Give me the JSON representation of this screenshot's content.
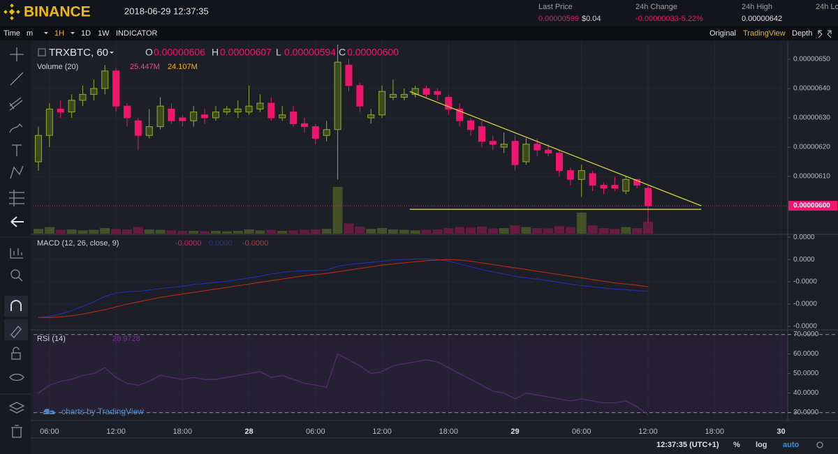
{
  "header": {
    "logo": "BINANCE",
    "datetime": "2018-06-29 12:37:35",
    "stats": [
      {
        "label": "Last Price",
        "values": [
          "0.00000599",
          "$0.04"
        ]
      },
      {
        "label": "24h Change",
        "values": [
          "-0.00000033",
          "-5.22%"
        ]
      },
      {
        "label": "24h High",
        "values": [
          "0.00000642"
        ]
      },
      {
        "label": "24h Lo"
      }
    ]
  },
  "toolbar": {
    "left": [
      "Time",
      "m",
      "1H",
      "1D",
      "1W",
      "INDICATOR"
    ],
    "right": [
      "Original",
      "TradingView",
      "Depth"
    ]
  },
  "chart_data": [
    {
      "type": "candlestick",
      "symbol": "TRXBTC, 60",
      "ohlc_legend": [
        {
          "key": "O",
          "value": "0.00000606"
        },
        {
          "key": "H",
          "value": "0.00000607"
        },
        {
          "key": "L",
          "value": "0.00000594"
        },
        {
          "key": "C",
          "value": "0.00000600"
        }
      ],
      "volume_legend": {
        "title": "Volume (20)",
        "values": [
          "25.447M",
          "24.107M"
        ]
      },
      "up_color": "#8fb02a",
      "down_color": "#f0166f",
      "open": [
        6.15e-06,
        6.24e-06,
        6.33e-06,
        6.32e-06,
        6.36e-06,
        6.38e-06,
        6.4e-06,
        6.46e-06,
        6.34e-06,
        6.29e-06,
        6.24e-06,
        6.27e-06,
        6.33e-06,
        6.3e-06,
        6.29e-06,
        6.31e-06,
        6.3e-06,
        6.32e-06,
        6.32e-06,
        6.32e-06,
        6.33e-06,
        6.35e-06,
        6.3e-06,
        6.32e-06,
        6.28e-06,
        6.27e-06,
        6.24e-06,
        6.26e-06,
        6.48e-06,
        6.41e-06,
        6.3e-06,
        6.31e-06,
        6.37e-06,
        6.37e-06,
        6.38e-06,
        6.4e-06,
        6.39e-06,
        6.37e-06,
        6.33e-06,
        6.29e-06,
        6.27e-06,
        6.22e-06,
        6.2e-06,
        6.22e-06,
        6.15e-06,
        6.21e-06,
        6.19e-06,
        6.18e-06,
        6.12e-06,
        6.09e-06,
        6.11e-06,
        6.07e-06,
        6.07e-06,
        6.05e-06,
        6.09e-06,
        6.06e-06
      ],
      "high": [
        6.27e-06,
        6.35e-06,
        6.36e-06,
        6.38e-06,
        6.41e-06,
        6.43e-06,
        6.48e-06,
        6.47e-06,
        6.35e-06,
        6.3e-06,
        6.33e-06,
        6.37e-06,
        6.35e-06,
        6.31e-06,
        6.34e-06,
        6.33e-06,
        6.34e-06,
        6.34e-06,
        6.36e-06,
        6.41e-06,
        6.38e-06,
        6.37e-06,
        6.34e-06,
        6.34e-06,
        6.3e-06,
        6.28e-06,
        6.29e-06,
        6.55e-06,
        6.5e-06,
        6.42e-06,
        6.33e-06,
        6.41e-06,
        6.43e-06,
        6.4e-06,
        6.41e-06,
        6.41e-06,
        6.4e-06,
        6.38e-06,
        6.35e-06,
        6.3e-06,
        6.29e-06,
        6.24e-06,
        6.25e-06,
        6.24e-06,
        6.23e-06,
        6.23e-06,
        6.21e-06,
        6.19e-06,
        6.13e-06,
        6.14e-06,
        6.12e-06,
        6.08e-06,
        6.1e-06,
        6.1e-06,
        6.09e-06,
        6.07e-06
      ],
      "low": [
        6.12e-06,
        6.2e-06,
        6.3e-06,
        6.3e-06,
        6.34e-06,
        6.36e-06,
        6.38e-06,
        6.32e-06,
        6.27e-06,
        6.19e-06,
        6.23e-06,
        6.26e-06,
        6.28e-06,
        6.27e-06,
        6.27e-06,
        6.28e-06,
        6.29e-06,
        6.31e-06,
        6.3e-06,
        6.31e-06,
        6.32e-06,
        6.29e-06,
        6.29e-06,
        6.27e-06,
        6.25e-06,
        6.21e-06,
        6.22e-06,
        6.09e-06,
        6.39e-06,
        6.32e-06,
        6.28e-06,
        6.3e-06,
        6.36e-06,
        6.36e-06,
        6.37e-06,
        6.37e-06,
        6.36e-06,
        6.31e-06,
        6.27e-06,
        6.24e-06,
        6.2e-06,
        6.19e-06,
        6.18e-06,
        6.12e-06,
        6.14e-06,
        6.17e-06,
        6.17e-06,
        6.1e-06,
        6.07e-06,
        6.03e-06,
        6.05e-06,
        6.04e-06,
        6.05e-06,
        6.04e-06,
        6.06e-06,
        5.94e-06
      ],
      "close": [
        6.24e-06,
        6.33e-06,
        6.32e-06,
        6.36e-06,
        6.38e-06,
        6.4e-06,
        6.46e-06,
        6.34e-06,
        6.3e-06,
        6.24e-06,
        6.27e-06,
        6.34e-06,
        6.29e-06,
        6.29e-06,
        6.32e-06,
        6.3e-06,
        6.32e-06,
        6.33e-06,
        6.33e-06,
        6.34e-06,
        6.35e-06,
        6.3e-06,
        6.31e-06,
        6.28e-06,
        6.27e-06,
        6.23e-06,
        6.26e-06,
        6.49e-06,
        6.41e-06,
        6.34e-06,
        6.31e-06,
        6.39e-06,
        6.38e-06,
        6.38e-06,
        6.4e-06,
        6.38e-06,
        6.38e-06,
        6.33e-06,
        6.29e-06,
        6.26e-06,
        6.22e-06,
        6.21e-06,
        6.21e-06,
        6.14e-06,
        6.21e-06,
        6.19e-06,
        6.18e-06,
        6.12e-06,
        6.09e-06,
        6.12e-06,
        6.07e-06,
        6.06e-06,
        6.06e-06,
        6.09e-06,
        6.07e-06,
        6e-06
      ],
      "volume": {
        "values": [
          10,
          14,
          8,
          9,
          7,
          8,
          12,
          10,
          9,
          14,
          9,
          8,
          7,
          6,
          6,
          5,
          6,
          5,
          6,
          9,
          7,
          8,
          6,
          7,
          8,
          9,
          10,
          100,
          22,
          15,
          10,
          12,
          9,
          8,
          7,
          8,
          9,
          12,
          14,
          13,
          15,
          11,
          12,
          18,
          14,
          12,
          11,
          16,
          14,
          45,
          18,
          12,
          10,
          14,
          12,
          25.447
        ],
        "y2lim": [
          0,
          100
        ]
      },
      "xlim": [
        -0.44,
        67.6
      ],
      "ylim": [
        5.905e-06,
        6.564e-06
      ],
      "yticks": [
        {
          "value": 6.5e-06,
          "label": "0.00000650"
        },
        {
          "value": 6.4e-06,
          "label": "0.00000640"
        },
        {
          "value": 6.3e-06,
          "label": "0.00000630"
        },
        {
          "value": 6.2e-06,
          "label": "0.00000620"
        },
        {
          "value": 6.1e-06,
          "label": "0.00000610"
        }
      ],
      "xticks": [
        {
          "value": 1,
          "label": "06:00"
        },
        {
          "value": 7,
          "label": "12:00"
        },
        {
          "value": 13,
          "label": "18:00"
        },
        {
          "value": 19,
          "label": "28"
        },
        {
          "value": 25,
          "label": "06:00"
        },
        {
          "value": 31,
          "label": "12:00"
        },
        {
          "value": 37,
          "label": "18:00"
        },
        {
          "value": 43,
          "label": "29"
        },
        {
          "value": 49,
          "label": "06:00"
        },
        {
          "value": 55,
          "label": "12:00"
        },
        {
          "value": 61,
          "label": "18:00"
        },
        {
          "value": 67,
          "label": "30"
        }
      ],
      "last_price": {
        "value": 6e-06,
        "label": "0.00000600",
        "color": "#f0166f"
      },
      "drawings": [
        {
          "x": [
            33.5,
            59.8
          ],
          "y": [
            6.39e-06,
            6e-06
          ],
          "color": "#e3e33a"
        },
        {
          "x": [
            33.5,
            59.8
          ],
          "y": [
            5.988e-06,
            5.988e-06
          ],
          "color": "#e3e33a"
        }
      ]
    },
    {
      "type": "line",
      "title": "MACD (12, 26, close, 9)",
      "legend": [
        {
          "text": "-0.0000",
          "color": "#f0166f"
        },
        {
          "text": "0.0000",
          "color": "#2430a8"
        },
        {
          "text": "-0.0000",
          "color": "#c0392b"
        }
      ],
      "ylim": [
        -1.25e-07,
        4.4e-08
      ],
      "yticks": [
        {
          "value": 4e-08,
          "label": "0.0000"
        },
        {
          "value": 0,
          "label": "0.0000"
        },
        {
          "value": -4e-08,
          "label": "-0.0000"
        },
        {
          "value": -8e-08,
          "label": "-0.0000"
        },
        {
          "value": -1.2e-07,
          "label": "-0.0000"
        }
      ],
      "series": [
        {
          "color": "#2430a8",
          "values": [
            -1.04e-07,
            -1.02e-07,
            -9.8e-08,
            -9.2e-08,
            -8.4e-08,
            -7.6e-08,
            -6.6e-08,
            -6e-08,
            -5.8e-08,
            -5.7e-08,
            -5.5e-08,
            -5.2e-08,
            -5e-08,
            -4.8e-08,
            -4.5e-08,
            -4.3e-08,
            -4.1e-08,
            -3.9e-08,
            -3.6e-08,
            -3.3e-08,
            -3e-08,
            -2.6e-08,
            -2.3e-08,
            -2.1e-08,
            -2e-08,
            -2e-08,
            -1.9e-08,
            -1.2e-08,
            -9e-09,
            -7e-09,
            -5e-09,
            -3e-09,
            -1e-09,
            0,
            1e-09,
            1e-09,
            0,
            -3e-09,
            -8e-09,
            -1.3e-08,
            -1.8e-08,
            -2.2e-08,
            -2.6e-08,
            -3e-08,
            -3.3e-08,
            -3.5e-08,
            -3.8e-08,
            -4.1e-08,
            -4.4e-08,
            -4.7e-08,
            -4.9e-08,
            -5.1e-08,
            -5.3e-08,
            -5.4e-08,
            -5.6e-08,
            -5.7e-08
          ]
        },
        {
          "color": "#b0281a",
          "values": [
            -1.04e-07,
            -1.04e-07,
            -1.03e-07,
            -1.01e-07,
            -9.8e-08,
            -9.4e-08,
            -9e-08,
            -8.5e-08,
            -8e-08,
            -7.6e-08,
            -7.2e-08,
            -6.8e-08,
            -6.5e-08,
            -6.2e-08,
            -5.9e-08,
            -5.6e-08,
            -5.3e-08,
            -5e-08,
            -4.7e-08,
            -4.4e-08,
            -4.1e-08,
            -3.8e-08,
            -3.5e-08,
            -3.2e-08,
            -2.9e-08,
            -2.7e-08,
            -2.5e-08,
            -2.2e-08,
            -1.9e-08,
            -1.6e-08,
            -1.3e-08,
            -1e-08,
            -8e-09,
            -6e-09,
            -4e-09,
            -2e-09,
            -1e-09,
            0,
            -1e-09,
            -3e-09,
            -6e-09,
            -9e-09,
            -1.2e-08,
            -1.5e-08,
            -1.8e-08,
            -2.1e-08,
            -2.4e-08,
            -2.7e-08,
            -3e-08,
            -3.3e-08,
            -3.6e-08,
            -3.9e-08,
            -4.2e-08,
            -4.4e-08,
            -4.6e-08,
            -4.9e-08
          ]
        }
      ]
    },
    {
      "type": "line",
      "title": "RSI (14)",
      "legend": [
        {
          "text": "28.9728",
          "color": "#7b2d9a"
        }
      ],
      "ylim": [
        27,
        72
      ],
      "yticks": [
        {
          "value": 70,
          "label": "70.0000"
        },
        {
          "value": 60,
          "label": "60.0000"
        },
        {
          "value": 50,
          "label": "50.0000"
        },
        {
          "value": 40,
          "label": "40.0000"
        },
        {
          "value": 30,
          "label": "30.0000"
        }
      ],
      "band": [
        30,
        70
      ],
      "series": [
        {
          "color": "#5e2a78",
          "values": [
            40,
            44,
            46,
            47,
            49,
            50,
            53,
            48,
            45,
            44,
            46,
            49,
            48,
            47,
            48,
            47,
            47,
            48,
            49,
            50,
            51,
            48,
            49,
            47,
            45,
            44,
            43,
            60,
            57,
            54,
            50,
            51,
            54,
            55,
            56,
            57,
            56,
            53,
            50,
            47,
            44,
            41,
            40,
            37,
            40,
            39,
            38,
            37,
            36,
            37,
            36,
            35,
            35,
            36,
            33,
            28.9728
          ]
        }
      ]
    }
  ],
  "footer": {
    "time": "12:37:35 (UTC+1)",
    "buttons": [
      "%",
      "log",
      "auto"
    ],
    "attribution": "charts by TradingView"
  }
}
